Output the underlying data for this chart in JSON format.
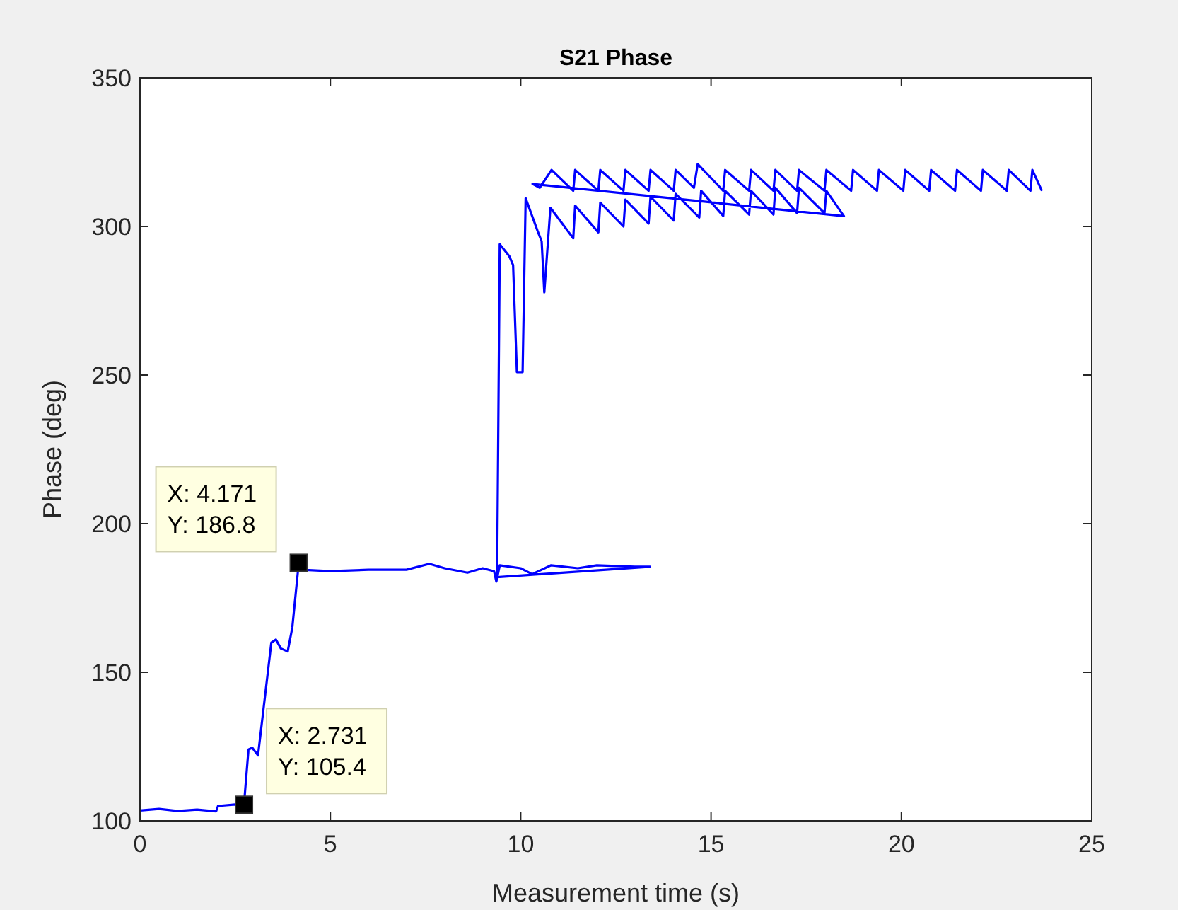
{
  "chart_data": {
    "type": "line",
    "title": "S21 Phase",
    "xlabel": "Measurement time (s)",
    "ylabel": "Phase (deg)",
    "xlim": [
      0,
      25
    ],
    "ylim": [
      100,
      350
    ],
    "xticks": [
      0,
      5,
      10,
      15,
      20,
      25
    ],
    "yticks": [
      100,
      150,
      200,
      250,
      300,
      350
    ],
    "line_style": "solid",
    "series": [
      {
        "color": "#0000ff",
        "x": [
          0,
          0.5,
          1,
          1.5,
          2.0,
          2.05,
          2.5,
          2.731,
          2.85,
          2.95,
          3.1,
          3.45,
          3.57,
          3.7,
          3.88,
          4.0,
          4.171,
          4.25,
          5,
          6,
          7,
          7.6,
          8,
          8.6,
          9,
          9.3,
          9.36,
          9.45,
          10,
          10.3,
          10.8,
          11.5,
          12,
          13,
          13.4,
          9.38,
          9.45,
          9.7,
          9.8,
          9.9,
          10.05,
          10.13,
          10.44,
          10.55,
          10.62,
          10.78,
          11.38,
          11.43,
          12.04,
          12.09,
          12.7,
          12.75,
          13.36,
          13.41,
          14.02,
          14.07,
          14.69,
          14.74,
          15.32,
          15.37,
          16.0,
          16.05,
          16.64,
          16.69,
          17.26,
          17.31,
          17.98,
          18.03,
          18.49,
          10.31,
          10.5,
          10.81,
          11.38,
          11.43,
          12.04,
          12.09,
          12.7,
          12.75,
          13.36,
          13.41,
          14.02,
          14.07,
          14.55,
          14.65,
          15.32,
          15.37,
          16.0,
          16.05,
          16.64,
          16.69,
          17.26,
          17.31,
          17.98,
          18.03,
          18.68,
          18.73,
          19.36,
          19.41,
          20.05,
          20.1,
          20.73,
          20.78,
          21.41,
          21.46,
          22.09,
          22.14,
          22.77,
          22.82,
          23.39,
          23.44,
          23.69
        ],
        "values": [
          103.5,
          104,
          103.3,
          103.8,
          103.2,
          105,
          105.5,
          105.4,
          124,
          124.6,
          122,
          160,
          161,
          158,
          157,
          165,
          186.8,
          184.5,
          184,
          184.5,
          184.5,
          186.5,
          185,
          183.5,
          185,
          184,
          180.5,
          186,
          185,
          183,
          186,
          185,
          186,
          185.5,
          185.5,
          182,
          294,
          290,
          287,
          251,
          251,
          309.5,
          298.6,
          295,
          277.8,
          306.3,
          296,
          307,
          298,
          308,
          300,
          309,
          301,
          310,
          302,
          311,
          303,
          312,
          303.5,
          312,
          304,
          312,
          304,
          313,
          304.5,
          313,
          304.5,
          312,
          303.5,
          314.3,
          313,
          319,
          312,
          319,
          312,
          319,
          312,
          319,
          312,
          319,
          312,
          319,
          313,
          321,
          312,
          319,
          312,
          319,
          312,
          319,
          312,
          319,
          312,
          319,
          312,
          319,
          312,
          319,
          312,
          319,
          312,
          319,
          312,
          319,
          312,
          319,
          312,
          319,
          312,
          319,
          312
        ]
      }
    ],
    "annotations": [
      {
        "text": "X: 4.171\nY: 186.8",
        "x": 4.171,
        "y": 186.8
      },
      {
        "text": "X: 2.731\nY: 105.4",
        "x": 2.731,
        "y": 105.4
      }
    ]
  }
}
